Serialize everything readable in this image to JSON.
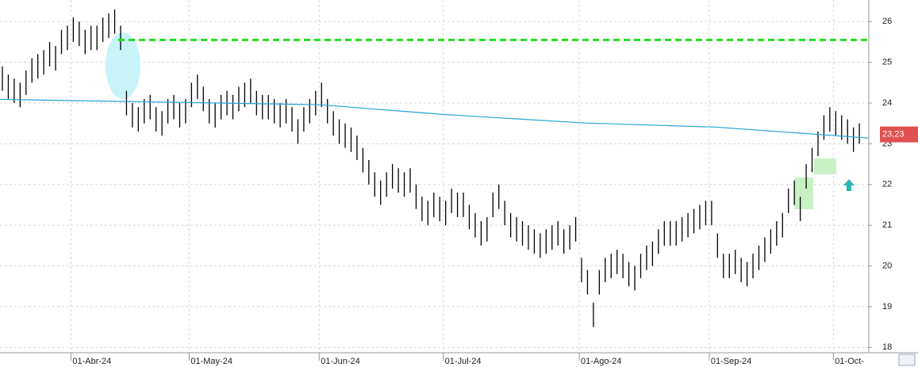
{
  "chart_data": {
    "type": "range_bar",
    "color": "#000000",
    "high": [
      24.9,
      24.7,
      24.6,
      24.5,
      24.8,
      25.1,
      25.2,
      25.3,
      25.5,
      25.4,
      25.8,
      25.9,
      26.1,
      26.0,
      25.8,
      25.9,
      25.9,
      26.1,
      26.2,
      26.3,
      25.9,
      24.3,
      24.0,
      23.9,
      24.1,
      24.2,
      23.9,
      23.8,
      24.1,
      24.2,
      24.0,
      24.1,
      24.5,
      24.7,
      24.4,
      24.1,
      24.0,
      24.2,
      24.3,
      24.2,
      24.4,
      24.5,
      24.6,
      24.3,
      24.2,
      24.2,
      24.1,
      24.0,
      24.1,
      23.9,
      23.6,
      23.9,
      24.1,
      24.3,
      24.5,
      24.1,
      23.8,
      23.6,
      23.5,
      23.4,
      23.2,
      22.9,
      22.6,
      22.3,
      22.1,
      22.3,
      22.5,
      22.4,
      22.3,
      22.4,
      22.0,
      21.7,
      21.6,
      21.8,
      21.7,
      21.6,
      21.9,
      21.8,
      21.8,
      21.5,
      21.3,
      21.1,
      21.2,
      21.8,
      22.0,
      21.6,
      21.3,
      21.2,
      21.1,
      21.0,
      20.9,
      20.8,
      20.9,
      21.0,
      21.1,
      20.9,
      21.0,
      21.2,
      20.2,
      19.9,
      19.1,
      19.9,
      20.2,
      20.3,
      20.4,
      20.3,
      20.1,
      20.0,
      20.3,
      20.5,
      20.6,
      20.9,
      21.1,
      21.1,
      21.1,
      21.2,
      21.3,
      21.4,
      21.5,
      21.6,
      21.6,
      20.8,
      20.3,
      20.3,
      20.4,
      20.2,
      20.1,
      20.3,
      20.5,
      20.7,
      20.9,
      21.1,
      21.3,
      21.9,
      22.1,
      21.7,
      22.5,
      22.9,
      23.3,
      23.7,
      23.9,
      23.8,
      23.7,
      23.6,
      23.4,
      23.5
    ],
    "low": [
      24.3,
      24.1,
      24.0,
      23.9,
      24.2,
      24.5,
      24.6,
      24.7,
      24.9,
      24.8,
      25.2,
      25.3,
      25.5,
      25.4,
      25.2,
      25.3,
      25.3,
      25.5,
      25.6,
      25.7,
      25.3,
      23.7,
      23.4,
      23.3,
      23.5,
      23.6,
      23.3,
      23.2,
      23.5,
      23.6,
      23.4,
      23.5,
      23.9,
      24.1,
      23.8,
      23.5,
      23.4,
      23.6,
      23.7,
      23.6,
      23.8,
      23.9,
      24.0,
      23.7,
      23.6,
      23.6,
      23.5,
      23.4,
      23.5,
      23.3,
      23.0,
      23.3,
      23.5,
      23.7,
      23.9,
      23.5,
      23.2,
      23.0,
      22.9,
      22.8,
      22.6,
      22.3,
      22.0,
      21.7,
      21.5,
      21.7,
      21.9,
      21.8,
      21.7,
      21.8,
      21.4,
      21.1,
      21.0,
      21.2,
      21.1,
      21.0,
      21.3,
      21.2,
      21.2,
      20.9,
      20.7,
      20.5,
      20.6,
      21.2,
      21.4,
      21.0,
      20.7,
      20.6,
      20.5,
      20.4,
      20.3,
      20.2,
      20.3,
      20.4,
      20.5,
      20.3,
      20.4,
      20.6,
      19.6,
      19.3,
      18.5,
      19.3,
      19.6,
      19.7,
      19.8,
      19.7,
      19.5,
      19.4,
      19.7,
      19.9,
      20.0,
      20.3,
      20.5,
      20.5,
      20.5,
      20.6,
      20.7,
      20.8,
      20.9,
      21.0,
      21.0,
      20.2,
      19.7,
      19.7,
      19.8,
      19.6,
      19.5,
      19.7,
      19.9,
      20.1,
      20.3,
      20.5,
      20.7,
      21.3,
      21.5,
      21.1,
      21.9,
      22.3,
      22.7,
      23.1,
      23.3,
      23.2,
      23.1,
      23.0,
      22.8,
      23.0
    ],
    "average": {
      "color": "#2aa4d6",
      "x": [
        0,
        54,
        75,
        99,
        121,
        147
      ],
      "values": [
        24.09,
        23.96,
        23.72,
        23.51,
        23.41,
        23.14
      ]
    },
    "level": {
      "color": "#22dd22",
      "x": [
        20,
        147
      ],
      "value": 25.55
    },
    "last": {
      "value": 23.23,
      "label": "23,23"
    },
    "xlim": [
      0,
      147
    ],
    "ylim": [
      17.87,
      26.53
    ],
    "xticks": [
      {
        "value": 12,
        "label": "01-Abr-24"
      },
      {
        "value": 32,
        "label": "01-May-24"
      },
      {
        "value": 54,
        "label": "01-Jun-24"
      },
      {
        "value": 75,
        "label": "01-Jul-24"
      },
      {
        "value": 98,
        "label": "01-Ago-24"
      },
      {
        "value": 120,
        "label": "01-Sep-24"
      },
      {
        "value": 141,
        "label": "01-Oct-"
      }
    ],
    "yticks": [
      18,
      19,
      20,
      21,
      22,
      23,
      24,
      25,
      26
    ],
    "grid": true
  }
}
